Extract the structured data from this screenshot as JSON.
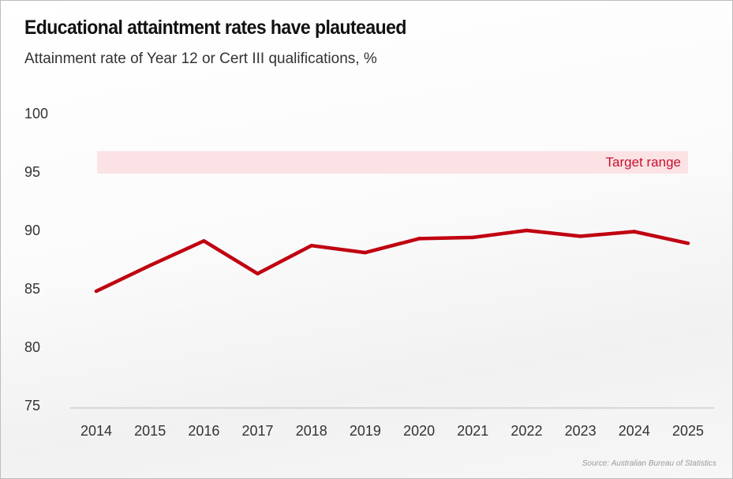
{
  "chart_data": {
    "type": "line",
    "title": "Educational attaintment rates have plauteaued",
    "subtitle": "Attainment rate of Year 12 or Cert III qualifications, %",
    "source": "Source: Australian Bureau of Statistics",
    "x": [
      "2014",
      "2015",
      "2016",
      "2017",
      "2018",
      "2019",
      "2020",
      "2021",
      "2022",
      "2023",
      "2024",
      "2025"
    ],
    "series": [
      {
        "values": [
          84.8,
          87.0,
          89.1,
          86.3,
          88.7,
          88.1,
          89.3,
          89.4,
          90.0,
          89.5,
          89.9,
          88.9
        ]
      }
    ],
    "ylim": [
      75,
      100
    ],
    "yticks": [
      75,
      80,
      85,
      90,
      95,
      100
    ],
    "target_band": {
      "label": "Target range",
      "range": [
        95,
        97
      ]
    },
    "grid": false,
    "colors": {
      "line": "#c00010",
      "band": "#fbe3e5",
      "band_label": "#c8102e",
      "axis": "#bbbbbb"
    }
  }
}
